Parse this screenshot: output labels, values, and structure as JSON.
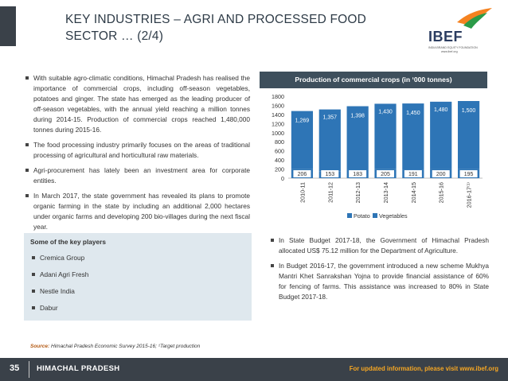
{
  "header": {
    "title": "KEY INDUSTRIES – AGRI AND PROCESSED FOOD SECTOR … (2/4)",
    "logo_text": "IBEF",
    "logo_sub": "INDIA BRAND EQUITY FOUNDATION",
    "logo_url": "www.ibef.org"
  },
  "bullets_top": [
    "With suitable agro-climatic conditions, Himachal Pradesh has realised the importance of commercial crops, including off-season vegetables, potatoes and ginger. The state has emerged as the leading producer of off-season vegetables, with the annual yield reaching a million tonnes during 2014-15. Production of commercial crops reached 1,480,000 tonnes during 2015-16.",
    "The food processing industry primarily focuses on the areas of traditional processing of agricultural and horticultural raw materials.",
    "Agri-procurement has lately been an investment area for corporate entities.",
    "In March 2017, the state government has revealed its plans to promote organic farming in the state by including an additional 2,000 hectares under organic farms and developing 200 bio-villages during the next fiscal year."
  ],
  "players": {
    "title": "Some of the key players",
    "items": [
      "Cremica Group",
      "Adani Agri Fresh",
      "Nestle India",
      "Dabur"
    ]
  },
  "bullets_bottom": [
    "In State Budget 2017-18, the Government of Himachal Pradesh allocated US$ 75.12 million for the Department of Agriculture.",
    "In Budget 2016-17, the government introduced a new scheme Mukhya Mantri Khet Sanrakshan Yojna to provide financial assistance of 60% for fencing of farms. This assistance was increased to 80% in State Budget 2017-18."
  ],
  "source": {
    "label": "Source:",
    "text": "Himachal Pradesh Economic Survey 2015-16; ¹Target production"
  },
  "footer": {
    "page": "35",
    "state": "HIMACHAL PRADESH",
    "note": "For updated information, please visit www.ibef.org"
  },
  "colors": {
    "bar": "#2e75b6",
    "title_band": "#3e4f5c",
    "footer": "#3a4149",
    "accent": "#f5a623"
  },
  "chart_data": {
    "type": "bar",
    "title": "Production of commercial crops (in ‘000 tonnes)",
    "categories": [
      "2010-11",
      "2011-12",
      "2012-13",
      "2013-14",
      "2014-15",
      "2015-16",
      "2016-17⁽¹⁾"
    ],
    "series": [
      {
        "name": "Potato",
        "values": [
          206,
          153,
          183,
          205,
          191,
          200,
          195
        ]
      },
      {
        "name": "Vegetables",
        "values": [
          1269,
          1357,
          1398,
          1430,
          1450,
          1480,
          1500
        ]
      }
    ],
    "ylim": [
      0,
      1800
    ],
    "yticks": [
      0,
      200,
      400,
      600,
      800,
      1000,
      1200,
      1400,
      1600,
      1800
    ],
    "legend": "bottom"
  }
}
